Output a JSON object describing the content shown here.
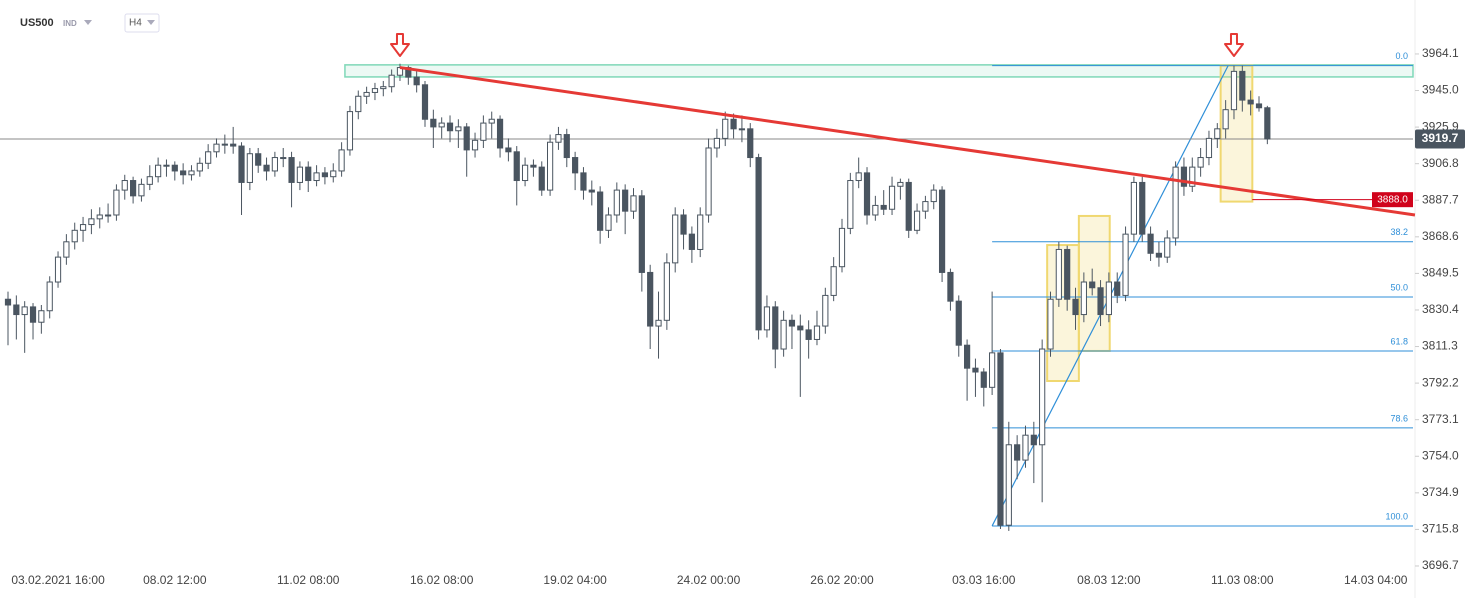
{
  "header": {
    "symbol": "US500",
    "market": "IND",
    "timeframe": "H4"
  },
  "chart_data": {
    "type": "candlestick",
    "categories": [
      null,
      null,
      null,
      null,
      null,
      null,
      "03.02.2021 16:00",
      null,
      null,
      null,
      null,
      null,
      null,
      null,
      null,
      null,
      null,
      null,
      null,
      null,
      "08.02 12:00",
      null,
      null,
      null,
      null,
      null,
      null,
      null,
      null,
      null,
      null,
      null,
      null,
      null,
      null,
      null,
      "11.02 08:00",
      null,
      null,
      null,
      null,
      null,
      null,
      null,
      null,
      null,
      null,
      null,
      null,
      null,
      null,
      null,
      "16.02 08:00",
      null,
      null,
      null,
      null,
      null,
      null,
      null,
      null,
      null,
      null,
      null,
      null,
      null,
      null,
      null,
      "19.02 04:00",
      null,
      null,
      null,
      null,
      null,
      null,
      null,
      null,
      null,
      null,
      null,
      null,
      null,
      null,
      null,
      "24.02 00:00",
      null,
      null,
      null,
      null,
      null,
      null,
      null,
      null,
      null,
      null,
      null,
      null,
      null,
      null,
      null,
      "26.02 20:00",
      null,
      null,
      null,
      null,
      null,
      null,
      null,
      null,
      null,
      null,
      null,
      null,
      null,
      null,
      null,
      null,
      "03.03 16:00",
      null,
      null,
      null,
      null,
      null,
      null,
      null,
      null,
      null,
      null,
      null,
      null,
      null,
      null,
      "08.03 12:00",
      null,
      null,
      null,
      null,
      null,
      null,
      null,
      null,
      null,
      null,
      null,
      null,
      null,
      null,
      null,
      "11.03 08:00",
      null,
      null,
      null,
      null,
      null,
      null,
      null,
      null,
      null,
      null,
      null,
      null,
      null,
      null,
      null,
      "14.03 04:00",
      null,
      null,
      null
    ],
    "values": [
      [
        3836,
        3840,
        3812,
        3833
      ],
      [
        3833,
        3838,
        3815,
        3828
      ],
      [
        3828,
        3835,
        3808,
        3832
      ],
      [
        3832,
        3834,
        3815,
        3824
      ],
      [
        3824,
        3833,
        3818,
        3830
      ],
      [
        3830,
        3848,
        3826,
        3845
      ],
      [
        3845,
        3861,
        3842,
        3858
      ],
      [
        3858,
        3870,
        3854,
        3866
      ],
      [
        3866,
        3876,
        3862,
        3872
      ],
      [
        3872,
        3879,
        3866,
        3875
      ],
      [
        3875,
        3883,
        3870,
        3878
      ],
      [
        3878,
        3884,
        3873,
        3880
      ],
      [
        3880,
        3886,
        3876,
        3880
      ],
      [
        3880,
        3896,
        3877,
        3893
      ],
      [
        3893,
        3901,
        3888,
        3898
      ],
      [
        3898,
        3900,
        3886,
        3890
      ],
      [
        3890,
        3899,
        3887,
        3896
      ],
      [
        3896,
        3906,
        3893,
        3900
      ],
      [
        3900,
        3910,
        3897,
        3906
      ],
      [
        3906,
        3909,
        3900,
        3906
      ],
      [
        3906,
        3908,
        3898,
        3903
      ],
      [
        3903,
        3907,
        3896,
        3901
      ],
      [
        3901,
        3906,
        3898,
        3903
      ],
      [
        3903,
        3910,
        3900,
        3907
      ],
      [
        3907,
        3917,
        3904,
        3913
      ],
      [
        3913,
        3920,
        3910,
        3917
      ],
      [
        3917,
        3922,
        3912,
        3917
      ],
      [
        3917,
        3926,
        3912,
        3916
      ],
      [
        3916,
        3918,
        3880,
        3897
      ],
      [
        3897,
        3915,
        3893,
        3912
      ],
      [
        3912,
        3915,
        3902,
        3906
      ],
      [
        3906,
        3910,
        3898,
        3903
      ],
      [
        3903,
        3913,
        3900,
        3910
      ],
      [
        3910,
        3915,
        3905,
        3910
      ],
      [
        3910,
        3913,
        3884,
        3897
      ],
      [
        3897,
        3908,
        3893,
        3905
      ],
      [
        3905,
        3908,
        3892,
        3898
      ],
      [
        3898,
        3906,
        3895,
        3902
      ],
      [
        3902,
        3905,
        3896,
        3900
      ],
      [
        3900,
        3907,
        3897,
        3903
      ],
      [
        3903,
        3918,
        3900,
        3914
      ],
      [
        3914,
        3937,
        3911,
        3934
      ],
      [
        3934,
        3945,
        3930,
        3942
      ],
      [
        3942,
        3947,
        3938,
        3944
      ],
      [
        3944,
        3949,
        3940,
        3946
      ],
      [
        3946,
        3950,
        3942,
        3947
      ],
      [
        3947,
        3956,
        3944,
        3953
      ],
      [
        3953,
        3959,
        3950,
        3957
      ],
      [
        3957,
        3958,
        3948,
        3952
      ],
      [
        3952,
        3955,
        3944,
        3948
      ],
      [
        3948,
        3950,
        3926,
        3930
      ],
      [
        3930,
        3935,
        3915,
        3926
      ],
      [
        3926,
        3931,
        3920,
        3928
      ],
      [
        3928,
        3932,
        3918,
        3924
      ],
      [
        3924,
        3930,
        3915,
        3926
      ],
      [
        3926,
        3928,
        3900,
        3914
      ],
      [
        3914,
        3923,
        3910,
        3919
      ],
      [
        3919,
        3932,
        3915,
        3928
      ],
      [
        3928,
        3934,
        3920,
        3930
      ],
      [
        3930,
        3932,
        3910,
        3915
      ],
      [
        3915,
        3920,
        3908,
        3913
      ],
      [
        3913,
        3916,
        3885,
        3898
      ],
      [
        3898,
        3910,
        3895,
        3906
      ],
      [
        3906,
        3909,
        3900,
        3905
      ],
      [
        3905,
        3908,
        3890,
        3893
      ],
      [
        3893,
        3922,
        3890,
        3918
      ],
      [
        3918,
        3926,
        3914,
        3922
      ],
      [
        3922,
        3925,
        3905,
        3910
      ],
      [
        3910,
        3913,
        3893,
        3902
      ],
      [
        3902,
        3905,
        3888,
        3893
      ],
      [
        3893,
        3898,
        3885,
        3892
      ],
      [
        3892,
        3895,
        3865,
        3872
      ],
      [
        3872,
        3884,
        3868,
        3880
      ],
      [
        3880,
        3897,
        3876,
        3893
      ],
      [
        3893,
        3896,
        3870,
        3882
      ],
      [
        3882,
        3894,
        3878,
        3890
      ],
      [
        3890,
        3893,
        3840,
        3850
      ],
      [
        3850,
        3854,
        3810,
        3822
      ],
      [
        3822,
        3840,
        3805,
        3825
      ],
      [
        3825,
        3860,
        3820,
        3855
      ],
      [
        3855,
        3884,
        3850,
        3880
      ],
      [
        3880,
        3883,
        3862,
        3870
      ],
      [
        3870,
        3874,
        3855,
        3862
      ],
      [
        3862,
        3884,
        3858,
        3880
      ],
      [
        3880,
        3920,
        3876,
        3915
      ],
      [
        3915,
        3925,
        3910,
        3920
      ],
      [
        3920,
        3934,
        3916,
        3930
      ],
      [
        3930,
        3933,
        3920,
        3925
      ],
      [
        3925,
        3932,
        3918,
        3925
      ],
      [
        3925,
        3928,
        3905,
        3910
      ],
      [
        3910,
        3912,
        3815,
        3820
      ],
      [
        3820,
        3838,
        3816,
        3832
      ],
      [
        3832,
        3835,
        3800,
        3810
      ],
      [
        3810,
        3830,
        3806,
        3825
      ],
      [
        3825,
        3828,
        3810,
        3822
      ],
      [
        3822,
        3828,
        3785,
        3820
      ],
      [
        3820,
        3825,
        3805,
        3815
      ],
      [
        3815,
        3830,
        3812,
        3822
      ],
      [
        3822,
        3842,
        3818,
        3838
      ],
      [
        3838,
        3858,
        3835,
        3853
      ],
      [
        3853,
        3878,
        3850,
        3873
      ],
      [
        3873,
        3902,
        3870,
        3898
      ],
      [
        3898,
        3910,
        3894,
        3902
      ],
      [
        3902,
        3905,
        3875,
        3880
      ],
      [
        3880,
        3890,
        3877,
        3885
      ],
      [
        3885,
        3893,
        3880,
        3883
      ],
      [
        3883,
        3900,
        3880,
        3895
      ],
      [
        3895,
        3899,
        3888,
        3897
      ],
      [
        3897,
        3899,
        3868,
        3872
      ],
      [
        3872,
        3886,
        3870,
        3882
      ],
      [
        3882,
        3890,
        3878,
        3887
      ],
      [
        3887,
        3896,
        3883,
        3893
      ],
      [
        3893,
        3895,
        3845,
        3850
      ],
      [
        3850,
        3852,
        3830,
        3835
      ],
      [
        3835,
        3838,
        3806,
        3812
      ],
      [
        3812,
        3815,
        3783,
        3800
      ],
      [
        3800,
        3805,
        3785,
        3798
      ],
      [
        3798,
        3800,
        3780,
        3790
      ],
      [
        3790,
        3840,
        3786,
        3808
      ],
      [
        3808,
        3810,
        3716,
        3718
      ],
      [
        3718,
        3772,
        3715,
        3760
      ],
      [
        3760,
        3765,
        3742,
        3752
      ],
      [
        3752,
        3770,
        3748,
        3765
      ],
      [
        3765,
        3772,
        3740,
        3760
      ],
      [
        3760,
        3815,
        3730,
        3810
      ],
      [
        3810,
        3840,
        3806,
        3836
      ],
      [
        3836,
        3866,
        3832,
        3862
      ],
      [
        3862,
        3864,
        3830,
        3836
      ],
      [
        3836,
        3842,
        3820,
        3828
      ],
      [
        3828,
        3850,
        3824,
        3845
      ],
      [
        3845,
        3852,
        3838,
        3842
      ],
      [
        3842,
        3846,
        3822,
        3828
      ],
      [
        3828,
        3850,
        3824,
        3845
      ],
      [
        3845,
        3850,
        3834,
        3838
      ],
      [
        3838,
        3874,
        3835,
        3870
      ],
      [
        3870,
        3900,
        3866,
        3897
      ],
      [
        3897,
        3900,
        3866,
        3870
      ],
      [
        3870,
        3874,
        3856,
        3860
      ],
      [
        3860,
        3866,
        3853,
        3858
      ],
      [
        3858,
        3872,
        3855,
        3868
      ],
      [
        3868,
        3908,
        3864,
        3905
      ],
      [
        3905,
        3910,
        3890,
        3895
      ],
      [
        3895,
        3910,
        3892,
        3905
      ],
      [
        3905,
        3915,
        3900,
        3910
      ],
      [
        3910,
        3924,
        3906,
        3920
      ],
      [
        3920,
        3928,
        3915,
        3925
      ],
      [
        3925,
        3940,
        3920,
        3935
      ],
      [
        3935,
        3958,
        3930,
        3955
      ],
      [
        3955,
        3958,
        3934,
        3940
      ],
      [
        3940,
        3945,
        3932,
        3938
      ],
      [
        3938,
        3942,
        3934,
        3936
      ],
      [
        3936,
        3937,
        3917,
        3919.7
      ],
      null,
      null,
      null,
      null,
      null,
      null,
      null,
      null,
      null,
      null,
      null,
      null,
      null,
      null,
      null,
      null
    ],
    "up_color": "#ffffff",
    "down_color": "#4a5560",
    "ylim": [
      3694.6,
      3974.0
    ],
    "yticks": [
      3964.1,
      {
        "value": 3945.0,
        "label": "3945.0"
      },
      3925.9,
      3906.8,
      3887.7,
      3868.6,
      3849.5,
      3830.4,
      3811.3,
      3792.2,
      3773.1,
      {
        "value": 3754.0,
        "label": "3754.0"
      },
      3734.9,
      3715.8,
      3696.7
    ],
    "last_price": 3919.7,
    "level_line": {
      "start": 149.2,
      "value": 3888.0,
      "label": "3888.0",
      "color": "#d0021b"
    },
    "trendline": {
      "from": [
        47,
        3957
      ],
      "to": [
        168.7,
        3880
      ],
      "color": "#e53935"
    },
    "resistance_zone": {
      "start": 40.4,
      "top": 3958.4,
      "bottom": 3952.1,
      "color": "#7fd8b8"
    },
    "fibonacci": {
      "start": 118,
      "color": "#2f8fd8",
      "diagonal": [
        [
          118,
          3717.6
        ],
        [
          146.3,
          3958
        ]
      ],
      "levels": [
        {
          "label": "0.0",
          "price": 3958
        },
        {
          "label": "38.2",
          "price": 3866
        },
        {
          "label": "50.0",
          "price": 3837.2
        },
        {
          "label": "61.8",
          "price": 3809
        },
        {
          "label": "78.6",
          "price": 3768.8
        },
        {
          "label": "100.0",
          "price": 3717.6
        }
      ]
    },
    "boxes": [
      {
        "from": 124.6,
        "to": 128.4,
        "top": 3864.3,
        "bottom": 3793.3
      },
      {
        "from": 128.4,
        "to": 132.1,
        "top": 3879.5,
        "bottom": 3809
      },
      {
        "from": 145.4,
        "to": 149.2,
        "top": 3958,
        "bottom": 3887
      }
    ],
    "box_color": "#f0d870",
    "signal_arrows": [
      47,
      147
    ],
    "arrow_color": "#e53935"
  }
}
